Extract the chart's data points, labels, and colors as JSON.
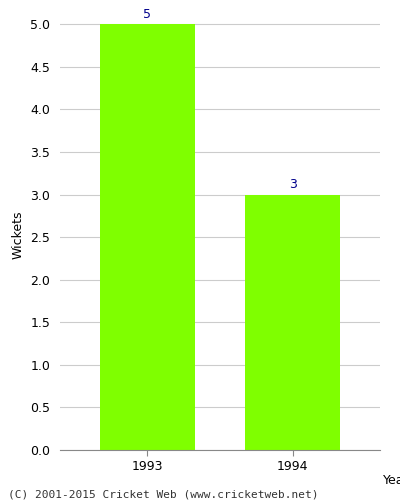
{
  "categories": [
    "1993",
    "1994"
  ],
  "values": [
    5,
    3
  ],
  "bar_color": "#7FFF00",
  "bar_edge_color": "#7FFF00",
  "xlabel": "Year",
  "ylabel": "Wickets",
  "ylim": [
    0,
    5.0
  ],
  "yticks": [
    0.0,
    0.5,
    1.0,
    1.5,
    2.0,
    2.5,
    3.0,
    3.5,
    4.0,
    4.5,
    5.0
  ],
  "label_color": "#00008B",
  "label_fontsize": 9,
  "axis_label_fontsize": 9,
  "tick_fontsize": 9,
  "footer_text": "(C) 2001-2015 Cricket Web (www.cricketweb.net)",
  "footer_fontsize": 8,
  "background_color": "#ffffff",
  "grid_color": "#cccccc",
  "bar_width": 0.65
}
